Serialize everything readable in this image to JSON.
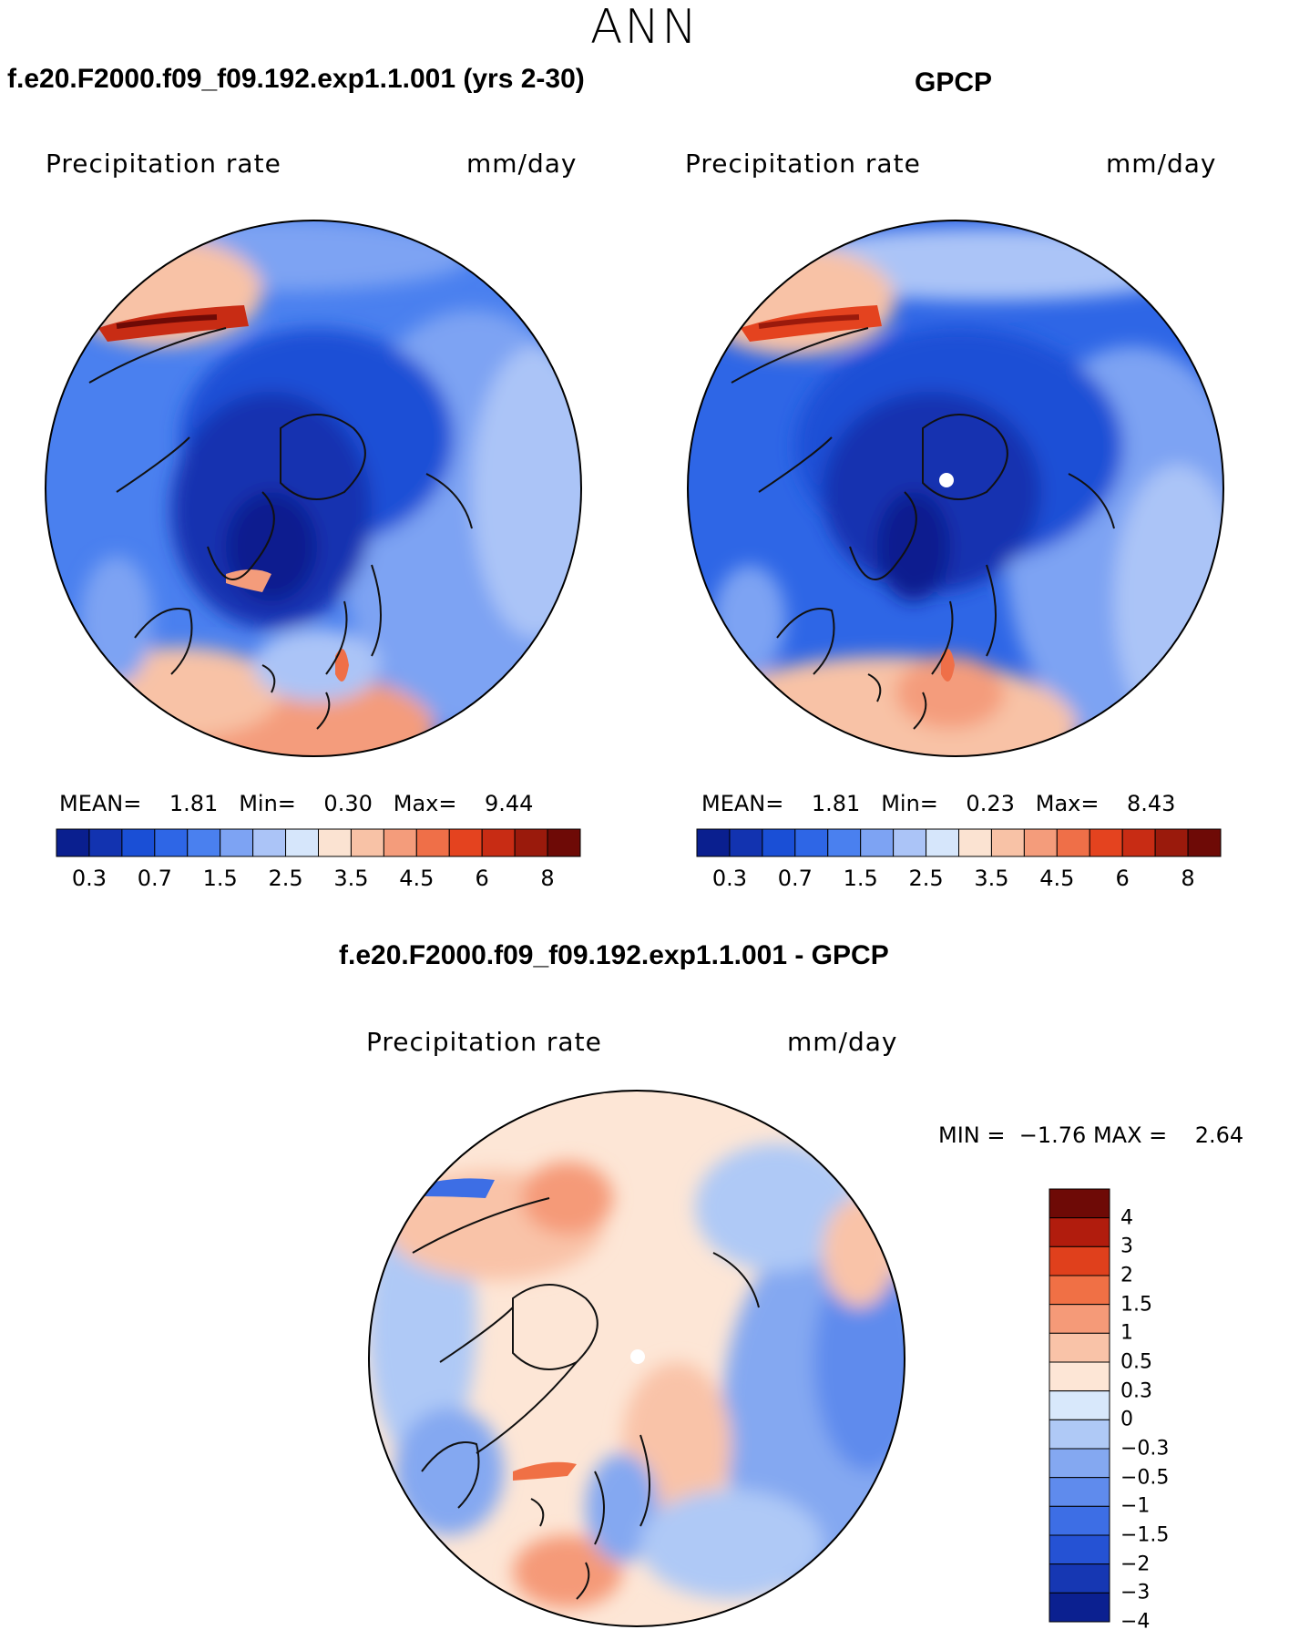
{
  "figure": {
    "title": "ANN"
  },
  "panels": {
    "model": {
      "title": "f.e20.F2000.f09_f09.192.exp1.1.001 (yrs 2-30)",
      "var_label": "Precipitation rate",
      "units": "mm/day",
      "stats": {
        "mean_label": "MEAN=",
        "mean": "1.81",
        "min_label": "Min=",
        "min": "0.30",
        "max_label": "Max=",
        "max": "9.44"
      }
    },
    "obs": {
      "title": "GPCP",
      "var_label": "Precipitation rate",
      "units": "mm/day",
      "stats": {
        "mean_label": "MEAN=",
        "mean": "1.81",
        "min_label": "Min=",
        "min": "0.23",
        "max_label": "Max=",
        "max": "8.43"
      }
    },
    "diff": {
      "title": "f.e20.F2000.f09_f09.192.exp1.1.001 - GPCP",
      "var_label": "Precipitation rate",
      "units": "mm/day",
      "stats": {
        "min_label": "MIN =",
        "min": "−1.76",
        "max_label": "MAX =",
        "max": "2.64"
      }
    }
  },
  "colorbars": {
    "abs": {
      "colors": [
        "#0a1f8f",
        "#1233b0",
        "#1a4fd6",
        "#2e66e6",
        "#4a80ef",
        "#7da3f3",
        "#abc4f7",
        "#d6e6fb",
        "#fbe3d2",
        "#f8c2a6",
        "#f49c7b",
        "#ef6f48",
        "#e4431f",
        "#c82c14",
        "#9a1a0c",
        "#6e0a06"
      ],
      "tick_labels": [
        "0.3",
        "0.7",
        "1.5",
        "2.5",
        "3.5",
        "4.5",
        "6",
        "8"
      ]
    },
    "diff": {
      "colors": [
        "#6e0a06",
        "#b11c0d",
        "#e0401c",
        "#f07045",
        "#f59a78",
        "#f9c3a8",
        "#fde6d6",
        "#d8e8fb",
        "#afc9f6",
        "#84a8f1",
        "#5f8bed",
        "#3d6ee5",
        "#2552d4",
        "#1637b3",
        "#0b2090"
      ],
      "tick_labels": [
        "4",
        "3",
        "2",
        "1.5",
        "1",
        "0.5",
        "0.3",
        "0",
        "−0.3",
        "−0.5",
        "−1",
        "−1.5",
        "−2",
        "−3",
        "−4"
      ]
    }
  },
  "maps": {
    "model": {
      "projection": "polar stereographic, north pole",
      "field": "precipitation",
      "dominant_colors": [
        "#2e66e6",
        "#4a80ef",
        "#f49c7b"
      ]
    },
    "obs": {
      "projection": "polar stereographic, north pole",
      "field": "precipitation",
      "dominant_colors": [
        "#1a4fd6",
        "#7da3f3",
        "#f8c2a6"
      ]
    },
    "diff": {
      "projection": "polar stereographic, north pole",
      "field": "precipitation difference",
      "dominant_colors": [
        "#fde6d6",
        "#84a8f1",
        "#f59a78"
      ]
    }
  }
}
